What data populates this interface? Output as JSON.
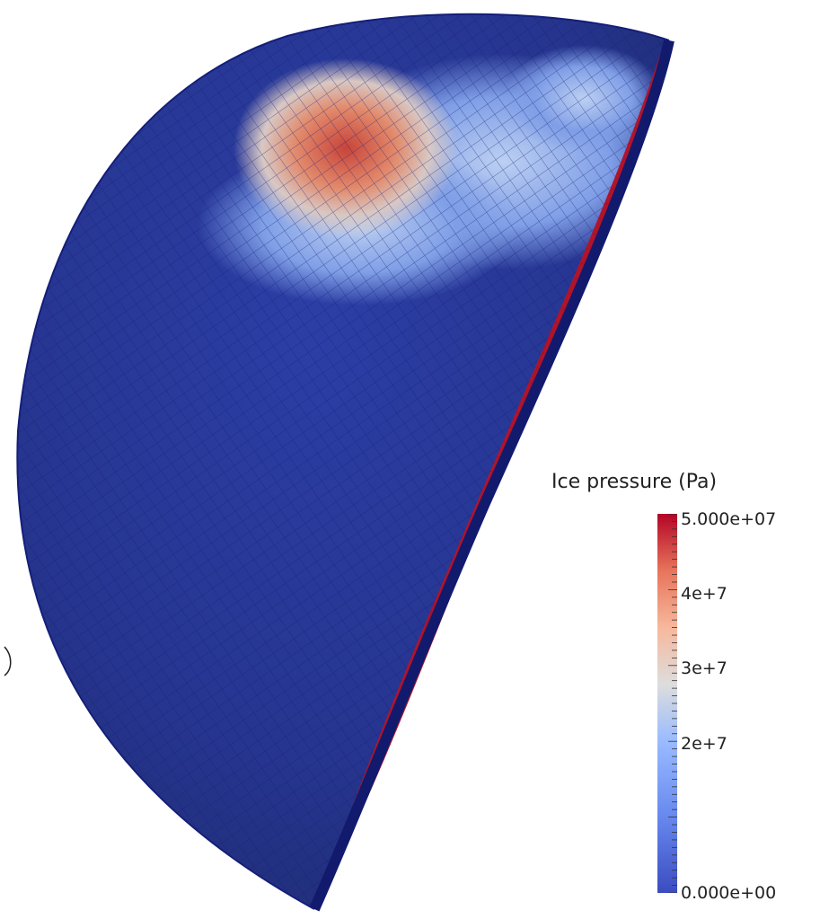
{
  "scene": {
    "object": "hemispherical shell mesh colored by ice pressure",
    "background_color": "#ffffff",
    "mesh_line_color": "#141e78"
  },
  "legend": {
    "title": "Ice pressure (Pa)",
    "max_label": "5.000e+07",
    "min_label": "0.000e+00",
    "tick_labels": [
      "4e+7",
      "3e+7",
      "2e+7"
    ],
    "tick_values": [
      40000000,
      30000000,
      20000000
    ],
    "range": [
      0,
      50000000
    ],
    "colormap": [
      "#3b4cc0",
      "#7b9ff9",
      "#c0d4f5",
      "#dddddd",
      "#f2cbb7",
      "#ee8468",
      "#b40426"
    ]
  }
}
